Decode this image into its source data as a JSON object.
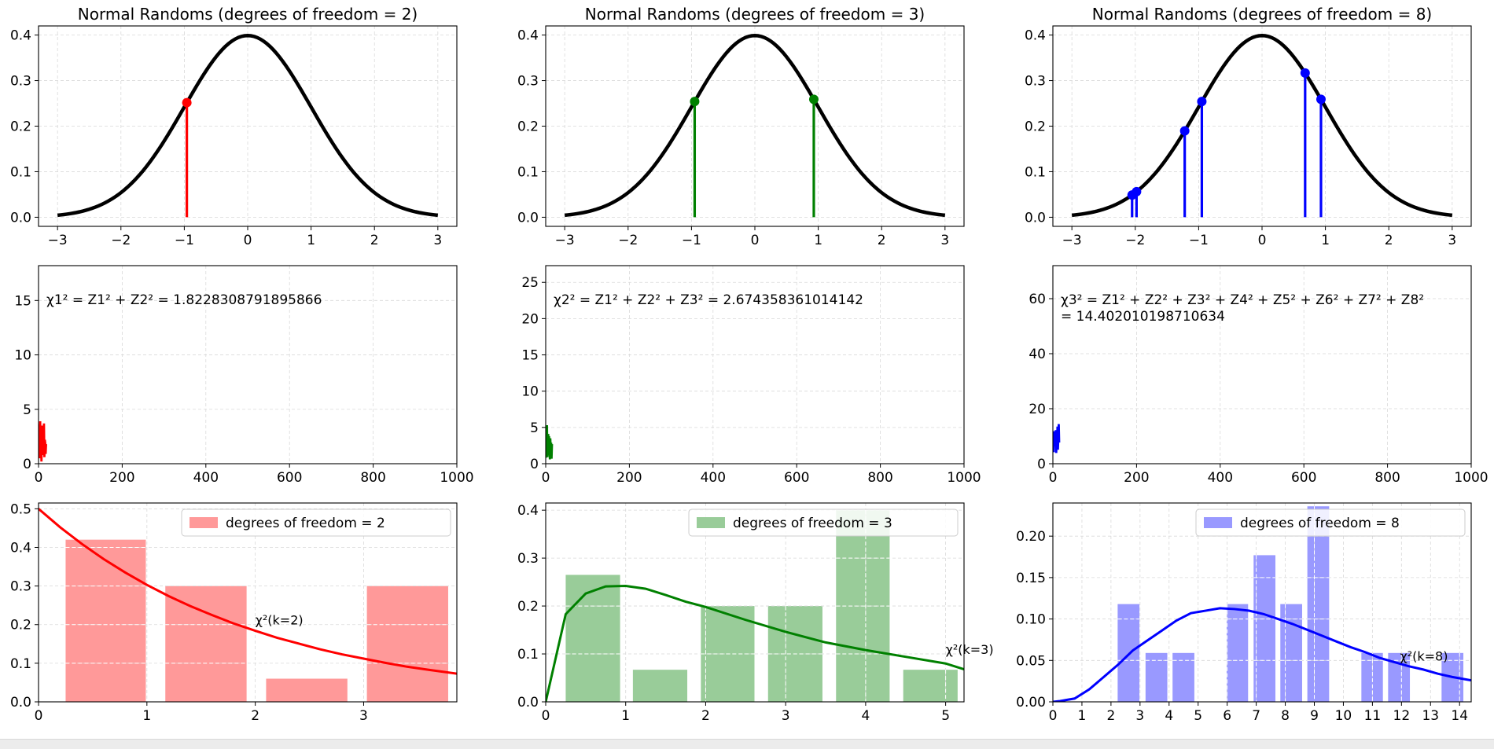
{
  "figure": {
    "colors": {
      "axis": "#000000",
      "grid": "#d9d9d9",
      "curve": "#000000"
    }
  },
  "chart_data": [
    {
      "type": "line",
      "panel": "normal-2",
      "title": "Normal Randoms (degrees of freedom = 2)",
      "xlim": [
        -3.3,
        3.3
      ],
      "ylim": [
        -0.02,
        0.42
      ],
      "xticks": [
        -3,
        -2,
        -1,
        0,
        1,
        2,
        3
      ],
      "xtick_labels": [
        "−3",
        "−2",
        "−1",
        "0",
        "1",
        "2",
        "3"
      ],
      "yticks": [
        0,
        0.1,
        0.2,
        0.3,
        0.4
      ],
      "ytick_labels": [
        "0.0",
        "0.1",
        "0.2",
        "0.3",
        "0.4"
      ],
      "color": "#ff0000",
      "stems": [
        -0.96
      ]
    },
    {
      "type": "line",
      "panel": "normal-3",
      "title": "Normal Randoms (degrees of freedom = 3)",
      "xlim": [
        -3.3,
        3.3
      ],
      "ylim": [
        -0.02,
        0.42
      ],
      "xticks": [
        -3,
        -2,
        -1,
        0,
        1,
        2,
        3
      ],
      "xtick_labels": [
        "−3",
        "−2",
        "−1",
        "0",
        "1",
        "2",
        "3"
      ],
      "yticks": [
        0,
        0.1,
        0.2,
        0.3,
        0.4
      ],
      "ytick_labels": [
        "0.0",
        "0.1",
        "0.2",
        "0.3",
        "0.4"
      ],
      "color": "#008000",
      "stems": [
        -0.95,
        0.93
      ]
    },
    {
      "type": "line",
      "panel": "normal-8",
      "title": "Normal Randoms (degrees of freedom = 8)",
      "xlim": [
        -3.3,
        3.3
      ],
      "ylim": [
        -0.02,
        0.42
      ],
      "xticks": [
        -3,
        -2,
        -1,
        0,
        1,
        2,
        3
      ],
      "xtick_labels": [
        "−3",
        "−2",
        "−1",
        "0",
        "1",
        "2",
        "3"
      ],
      "yticks": [
        0,
        0.1,
        0.2,
        0.3,
        0.4
      ],
      "ytick_labels": [
        "0.0",
        "0.1",
        "0.2",
        "0.3",
        "0.4"
      ],
      "color": "#0000ff",
      "stems": [
        -2.05,
        -1.98,
        -1.22,
        -0.95,
        0.68,
        0.93
      ]
    },
    {
      "type": "line",
      "panel": "chisq-2",
      "xlim": [
        0,
        1000
      ],
      "ylim": [
        0,
        18.2
      ],
      "xticks": [
        0,
        200,
        400,
        600,
        800,
        1000
      ],
      "xtick_labels": [
        "0",
        "200",
        "400",
        "600",
        "800",
        "1000"
      ],
      "yticks": [
        0,
        5,
        10,
        15
      ],
      "ytick_labels": [
        "0",
        "5",
        "10",
        "15"
      ],
      "color": "#ff0000",
      "annotation_lines": [
        "χ1² = Z1² + Z2² = 1.8228308791895866"
      ],
      "series_x": [
        0,
        1,
        2,
        3,
        4,
        5,
        6,
        7,
        8,
        9,
        10,
        11,
        12,
        13,
        14,
        15,
        16,
        17,
        18
      ],
      "series_y": [
        1.2,
        3.6,
        0.5,
        2.8,
        3.9,
        1.0,
        3.3,
        0.2,
        2.5,
        3.5,
        0.8,
        3.0,
        1.6,
        3.7,
        0.6,
        2.2,
        1.9,
        0.9,
        1.8
      ]
    },
    {
      "type": "line",
      "panel": "chisq-3",
      "xlim": [
        0,
        1000
      ],
      "ylim": [
        0,
        27.3
      ],
      "xticks": [
        0,
        200,
        400,
        600,
        800,
        1000
      ],
      "xtick_labels": [
        "0",
        "200",
        "400",
        "600",
        "800",
        "1000"
      ],
      "yticks": [
        0,
        5,
        10,
        15,
        20,
        25
      ],
      "ytick_labels": [
        "0",
        "5",
        "10",
        "15",
        "20",
        "25"
      ],
      "color": "#008000",
      "annotation_lines": [
        "χ2² = Z1² + Z2² + Z3² = 2.674358361014142"
      ],
      "series_x": [
        0,
        1,
        2,
        3,
        4,
        5,
        6,
        7,
        8,
        9,
        10,
        11,
        12,
        13,
        14,
        15
      ],
      "series_y": [
        0.8,
        3.2,
        1.5,
        5.3,
        0.9,
        2.4,
        4.1,
        1.2,
        3.8,
        2.0,
        0.6,
        3.5,
        1.8,
        2.9,
        0.7,
        2.7
      ]
    },
    {
      "type": "line",
      "panel": "chisq-8",
      "xlim": [
        0,
        1000
      ],
      "ylim": [
        0,
        72
      ],
      "xticks": [
        0,
        200,
        400,
        600,
        800,
        1000
      ],
      "xtick_labels": [
        "0",
        "200",
        "400",
        "600",
        "800",
        "1000"
      ],
      "yticks": [
        0,
        20,
        40,
        60
      ],
      "ytick_labels": [
        "0",
        "20",
        "40",
        "60"
      ],
      "color": "#0000ff",
      "annotation_lines": [
        "χ3² = Z1² + Z2² + Z3² + Z4² + Z5² + Z6² + Z7² + Z8²",
        " = 14.402010198710634"
      ],
      "series_x": [
        0,
        1,
        2,
        3,
        4,
        5,
        6,
        7,
        8,
        9,
        10,
        11,
        12,
        13,
        14,
        15
      ],
      "series_y": [
        5.8,
        9.5,
        4.2,
        11.8,
        7.1,
        10.4,
        6.3,
        12.2,
        3.9,
        8.8,
        6.7,
        13.5,
        5.1,
        9.2,
        14.4,
        7.7
      ]
    },
    {
      "type": "bar",
      "panel": "hist-2",
      "xlim": [
        0,
        3.86
      ],
      "ylim": [
        0,
        0.515
      ],
      "xticks": [
        0,
        1,
        2,
        3
      ],
      "xtick_labels": [
        "0",
        "1",
        "2",
        "3"
      ],
      "yticks": [
        0,
        0.1,
        0.2,
        0.3,
        0.4,
        0.5
      ],
      "ytick_labels": [
        "0.0",
        "0.1",
        "0.2",
        "0.3",
        "0.4",
        "0.5"
      ],
      "bar_color": "#ff9999",
      "line_color": "#ff0000",
      "legend": "degrees of freedom = 2",
      "curve_label": "χ²(k=2)",
      "curve_label_x": 2.0,
      "curve_label_y": 0.2,
      "bars": [
        {
          "start": 0.25,
          "end": 0.99,
          "value": 0.42
        },
        {
          "start": 1.17,
          "end": 1.92,
          "value": 0.3
        },
        {
          "start": 2.1,
          "end": 2.85,
          "value": 0.06
        },
        {
          "start": 3.03,
          "end": 3.78,
          "value": 0.3
        }
      ],
      "curve_x": [
        0,
        0.2,
        0.4,
        0.6,
        0.8,
        1.0,
        1.2,
        1.4,
        1.6,
        1.8,
        2.0,
        2.2,
        2.4,
        2.6,
        2.8,
        3.0,
        3.2,
        3.4,
        3.6,
        3.86
      ],
      "curve_y": [
        0.5,
        0.452,
        0.409,
        0.37,
        0.335,
        0.303,
        0.274,
        0.248,
        0.225,
        0.203,
        0.184,
        0.166,
        0.151,
        0.136,
        0.123,
        0.112,
        0.101,
        0.091,
        0.083,
        0.073
      ]
    },
    {
      "type": "bar",
      "panel": "hist-3",
      "xlim": [
        0,
        5.23
      ],
      "ylim": [
        0,
        0.415
      ],
      "xticks": [
        0,
        1,
        2,
        3,
        4,
        5
      ],
      "xtick_labels": [
        "0",
        "1",
        "2",
        "3",
        "4",
        "5"
      ],
      "yticks": [
        0,
        0.1,
        0.2,
        0.3,
        0.4
      ],
      "ytick_labels": [
        "0.0",
        "0.1",
        "0.2",
        "0.3",
        "0.4"
      ],
      "bar_color": "#99cc99",
      "line_color": "#008000",
      "legend": "degrees of freedom = 3",
      "curve_label": "χ²(k=3)",
      "curve_label_x": 5.0,
      "curve_label_y": 0.1,
      "bars": [
        {
          "start": 0.25,
          "end": 0.93,
          "value": 0.265
        },
        {
          "start": 1.09,
          "end": 1.77,
          "value": 0.067
        },
        {
          "start": 1.94,
          "end": 2.61,
          "value": 0.2
        },
        {
          "start": 2.78,
          "end": 3.46,
          "value": 0.2
        },
        {
          "start": 3.63,
          "end": 4.3,
          "value": 0.4
        },
        {
          "start": 4.47,
          "end": 5.15,
          "value": 0.067
        }
      ],
      "curve_x": [
        0,
        0.25,
        0.5,
        0.75,
        1.0,
        1.25,
        1.5,
        1.75,
        2.0,
        2.5,
        3.0,
        3.5,
        4.0,
        4.5,
        5.0,
        5.23
      ],
      "curve_y": [
        0,
        0.183,
        0.226,
        0.241,
        0.242,
        0.236,
        0.223,
        0.209,
        0.198,
        0.171,
        0.146,
        0.124,
        0.108,
        0.094,
        0.08,
        0.068
      ]
    },
    {
      "type": "bar",
      "panel": "hist-8",
      "xlim": [
        0,
        14.4
      ],
      "ylim": [
        0,
        0.24
      ],
      "xticks": [
        0,
        1,
        2,
        3,
        4,
        5,
        6,
        7,
        8,
        9,
        10,
        11,
        12,
        13,
        14
      ],
      "xtick_labels": [
        "0",
        "1",
        "2",
        "3",
        "4",
        "5",
        "6",
        "7",
        "8",
        "9",
        "10",
        "11",
        "12",
        "13",
        "14"
      ],
      "yticks": [
        0,
        0.05,
        0.1,
        0.15,
        0.2
      ],
      "ytick_labels": [
        "0.00",
        "0.05",
        "0.10",
        "0.15",
        "0.20"
      ],
      "bar_color": "#9999ff",
      "line_color": "#0000ff",
      "legend": "degrees of freedom = 8",
      "curve_label": "χ²(k=8)",
      "curve_label_x": 11.95,
      "curve_label_y": 0.05,
      "bars": [
        {
          "start": 2.23,
          "end": 2.98,
          "value": 0.118
        },
        {
          "start": 3.19,
          "end": 3.94,
          "value": 0.059
        },
        {
          "start": 4.12,
          "end": 4.87,
          "value": 0.059
        },
        {
          "start": 5.98,
          "end": 6.72,
          "value": 0.118
        },
        {
          "start": 6.91,
          "end": 7.66,
          "value": 0.177
        },
        {
          "start": 7.83,
          "end": 8.58,
          "value": 0.118
        },
        {
          "start": 8.76,
          "end": 9.51,
          "value": 0.236
        },
        {
          "start": 10.62,
          "end": 11.36,
          "value": 0.059
        },
        {
          "start": 11.54,
          "end": 12.29,
          "value": 0.059
        },
        {
          "start": 13.38,
          "end": 14.13,
          "value": 0.059
        }
      ],
      "curve_x": [
        0,
        0.25,
        0.75,
        1.25,
        1.75,
        2.25,
        2.75,
        3.25,
        3.75,
        4.25,
        4.75,
        5.25,
        5.75,
        6.25,
        6.75,
        7.25,
        7.75,
        8.25,
        8.75,
        9.25,
        9.75,
        10.25,
        10.75,
        11.25,
        11.75,
        12.25,
        12.75,
        13.25,
        13.75,
        14.4
      ],
      "curve_y": [
        0,
        0.001,
        0.004,
        0.015,
        0.03,
        0.045,
        0.062,
        0.074,
        0.086,
        0.098,
        0.107,
        0.11,
        0.113,
        0.112,
        0.11,
        0.106,
        0.1,
        0.094,
        0.087,
        0.08,
        0.073,
        0.066,
        0.06,
        0.053,
        0.048,
        0.043,
        0.039,
        0.034,
        0.03,
        0.026
      ]
    }
  ]
}
